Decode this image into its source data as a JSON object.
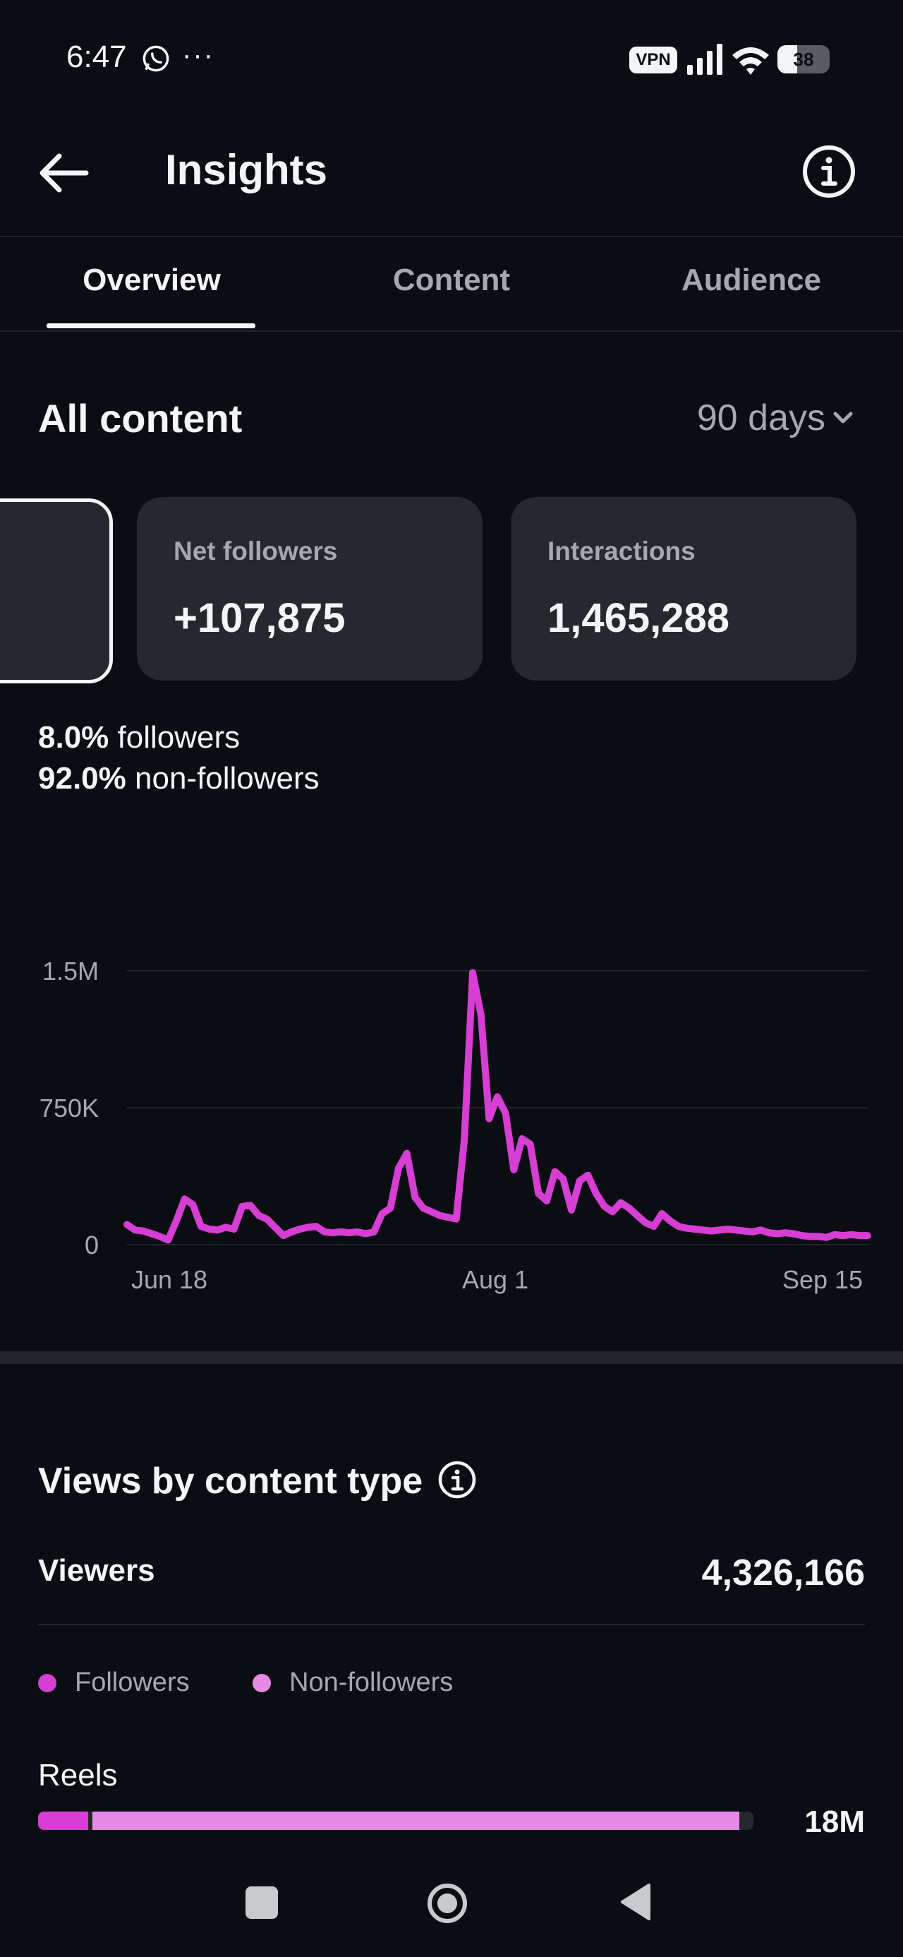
{
  "status_bar": {
    "time": "6:47",
    "overflow": "···",
    "vpn": "VPN",
    "battery": "38",
    "icons": [
      "whatsapp-icon",
      "signal-icon",
      "wifi-icon",
      "battery-icon"
    ]
  },
  "header": {
    "title": "Insights",
    "back_icon": "arrow-left-icon",
    "info_icon": "info-icon"
  },
  "tabs": [
    {
      "label": "Overview",
      "active": true
    },
    {
      "label": "Content",
      "active": false
    },
    {
      "label": "Audience",
      "active": false
    }
  ],
  "section": {
    "title": "All content",
    "range": "90 days"
  },
  "cards": [
    {
      "label": "Net followers",
      "value": "+107,875"
    },
    {
      "label": "Interactions",
      "value": "1,465,288"
    }
  ],
  "split": {
    "followers_pct": "8.0%",
    "followers_text": "followers",
    "nonfollowers_pct": "92.0%",
    "nonfollowers_text": "non-followers"
  },
  "chart_data": {
    "type": "line",
    "color": "#d63ed4",
    "y_ticks": [
      "1.5M",
      "750K",
      "0"
    ],
    "x_ticks": [
      "Jun 18",
      "Aug 1",
      "Sep 15"
    ],
    "ylim": [
      0,
      1500000
    ],
    "grid": true,
    "series": [
      {
        "values": [
          110000,
          80000,
          75000,
          60000,
          45000,
          25000,
          130000,
          250000,
          220000,
          100000,
          85000,
          80000,
          95000,
          85000,
          210000,
          215000,
          160000,
          140000,
          95000,
          50000,
          70000,
          85000,
          95000,
          100000,
          70000,
          65000,
          70000,
          65000,
          70000,
          60000,
          70000,
          170000,
          200000,
          420000,
          500000,
          260000,
          200000,
          180000,
          160000,
          150000,
          140000,
          580000,
          1490000,
          1260000,
          690000,
          810000,
          720000,
          410000,
          580000,
          550000,
          280000,
          240000,
          400000,
          360000,
          190000,
          350000,
          380000,
          280000,
          210000,
          180000,
          230000,
          200000,
          160000,
          120000,
          100000,
          170000,
          130000,
          100000,
          90000,
          85000,
          80000,
          75000,
          80000,
          85000,
          80000,
          75000,
          70000,
          80000,
          65000,
          60000,
          65000,
          60000,
          50000,
          45000,
          45000,
          40000,
          55000,
          50000,
          55000,
          50000,
          50000
        ]
      }
    ]
  },
  "views": {
    "title": "Views by content type",
    "viewers_label": "Viewers",
    "viewers_value": "4,326,166",
    "legend": [
      {
        "label": "Followers",
        "color": "#d63ed4"
      },
      {
        "label": "Non-followers",
        "color": "#e68ae6"
      }
    ],
    "reels": {
      "label": "Reels",
      "value": "18M",
      "followers_share": 0.07,
      "nonfollowers_share": 0.91
    }
  },
  "nav_bar": {
    "icons": [
      "recents-square-icon",
      "home-circle-icon",
      "back-triangle-icon"
    ]
  }
}
